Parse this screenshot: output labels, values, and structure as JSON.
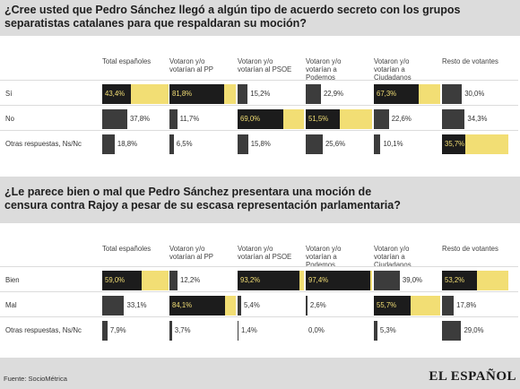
{
  "colors": {
    "dark": "#1c1c1c",
    "darkgray": "#3c3c3c",
    "yellow": "#f2de74",
    "band": "#dcdcdc"
  },
  "chart_data": [
    {
      "type": "table",
      "title": "¿Cree usted que Pedro Sánchez llegó a algún tipo de acuerdo secreto con los grupos separatistas catalanes para que respaldaran su moción?",
      "columns": [
        "Total españoles",
        "Votaron y/o votarían al PP",
        "Votaron y/o votarían al PSOE",
        "Votaron y/o votarían a Podemos",
        "Votaron y/o votarían a Ciudadanos",
        "Resto de votantes"
      ],
      "rows": [
        {
          "label": "Sí",
          "values": [
            43.4,
            81.8,
            15.2,
            22.9,
            67.3,
            30.0
          ],
          "labels": [
            "43,4%",
            "81,8%",
            "15,2%",
            "22,9%",
            "67,3%",
            "30,0%"
          ]
        },
        {
          "label": "No",
          "values": [
            37.8,
            11.7,
            69.0,
            51.5,
            22.6,
            34.3
          ],
          "labels": [
            "37,8%",
            "11,7%",
            "69,0%",
            "51,5%",
            "22,6%",
            "34,3%"
          ]
        },
        {
          "label": "Otras respuestas, Ns/Nc",
          "values": [
            18.8,
            6.5,
            15.8,
            25.6,
            10.1,
            35.7
          ],
          "labels": [
            "18,8%",
            "6,5%",
            "15,8%",
            "25,6%",
            "10,1%",
            "35,7%"
          ]
        }
      ]
    },
    {
      "type": "table",
      "title": "¿Le parece bien o mal que Pedro Sánchez presentara una moción de censura contra Rajoy a pesar de su escasa representación parlamentaria?",
      "columns": [
        "Total españoles",
        "Votaron y/o votarían al PP",
        "Votaron y/o votarían al PSOE",
        "Votaron y/o votarían a Podemos",
        "Votaron y/o votarían a Ciudadanos",
        "Resto de votantes"
      ],
      "rows": [
        {
          "label": "Bien",
          "values": [
            59.0,
            12.2,
            93.2,
            97.4,
            39.0,
            53.2
          ],
          "labels": [
            "59,0%",
            "12,2%",
            "93,2%",
            "97,4%",
            "39,0%",
            "53,2%"
          ]
        },
        {
          "label": "Mal",
          "values": [
            33.1,
            84.1,
            5.4,
            2.6,
            55.7,
            17.8
          ],
          "labels": [
            "33,1%",
            "84,1%",
            "5,4%",
            "2,6%",
            "55,7%",
            "17,8%"
          ]
        },
        {
          "label": "Otras respuestas, Ns/Nc",
          "values": [
            7.9,
            3.7,
            1.4,
            0.0,
            5.3,
            29.0
          ],
          "labels": [
            "7,9%",
            "3,7%",
            "1,4%",
            "0,0%",
            "5,3%",
            "29,0%"
          ]
        }
      ]
    }
  ],
  "header": {
    "q1_line1": "¿Cree usted que Pedro Sánchez llegó a algún tipo de acuerdo secreto con los grupos",
    "q1_line2": "separatistas catalanes para que respaldaran su moción?",
    "q2_line1": "¿Le parece bien o mal que Pedro Sánchez presentara una moción de",
    "q2_line2": "censura contra Rajoy a pesar de su escasa representación parlamentaria?"
  },
  "col_heads": [
    [
      "Total españoles"
    ],
    [
      "Votaron y/o",
      "votarían al PP"
    ],
    [
      "Votaron y/o",
      "votarían al PSOE"
    ],
    [
      "Votaron y/o",
      "votarían a",
      "Podemos"
    ],
    [
      "Votaron y/o",
      "votarían a",
      "Ciudadanos"
    ],
    [
      "Resto de votantes"
    ]
  ],
  "footer": {
    "source": "Fuente: SocioMétrica",
    "logo": "EL ESPAÑOL"
  }
}
